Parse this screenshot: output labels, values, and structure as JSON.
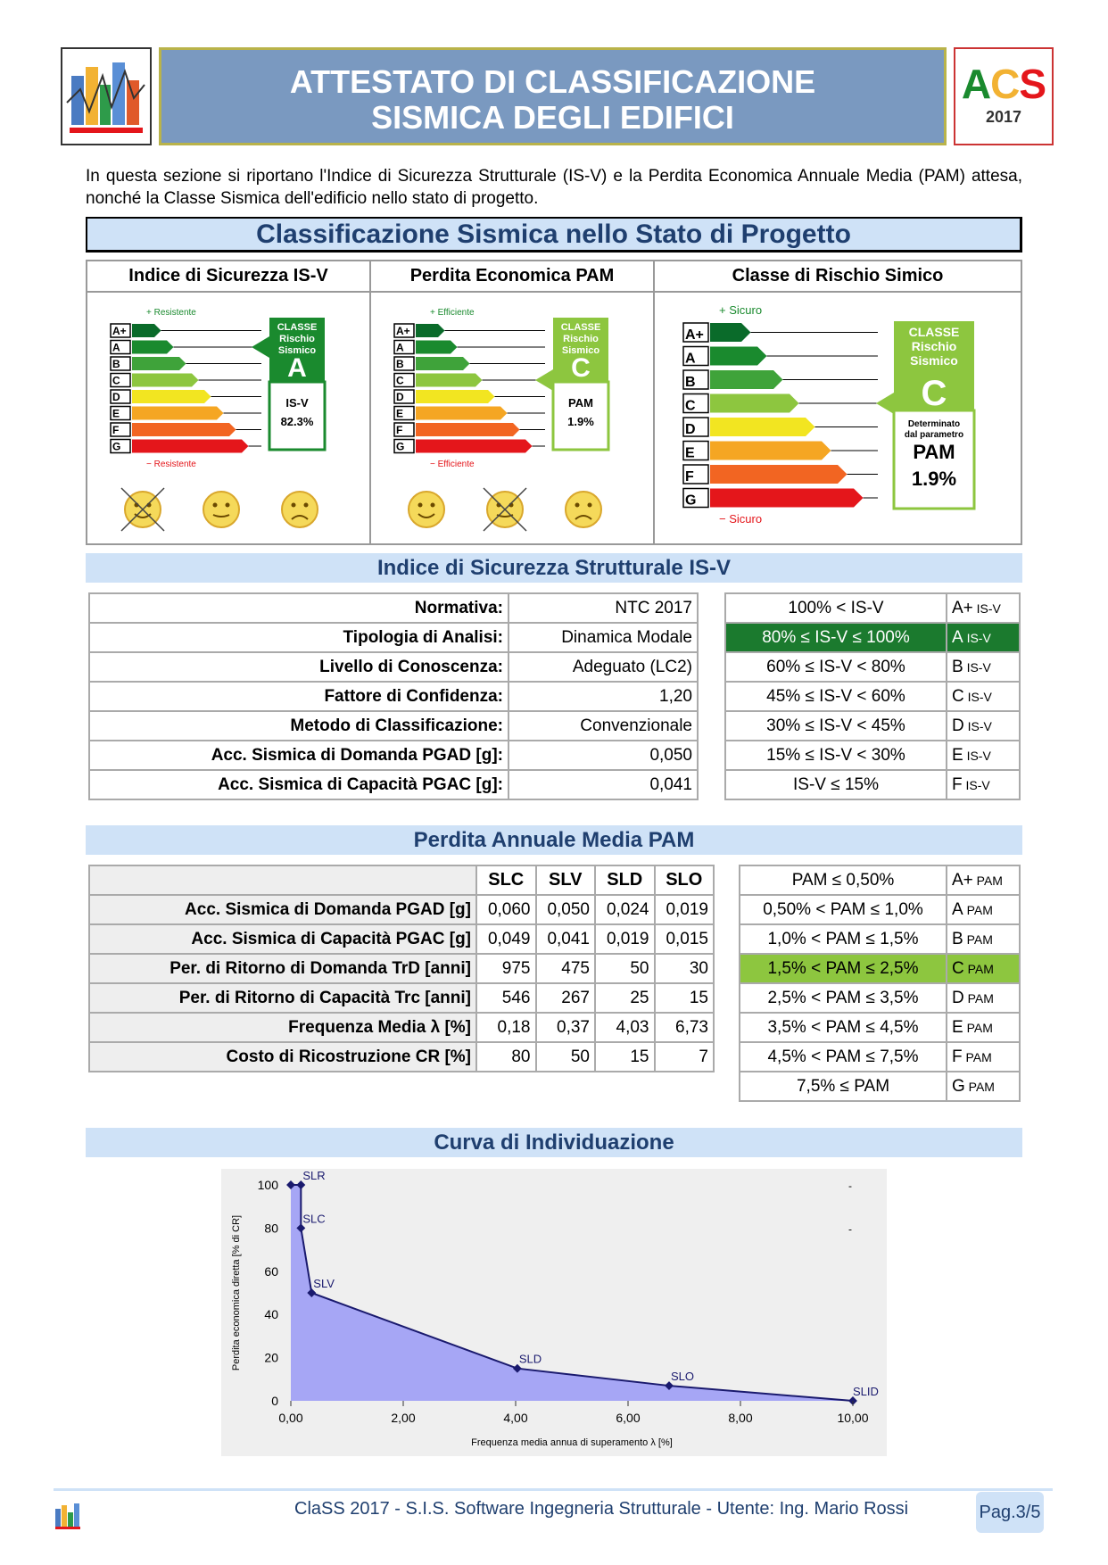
{
  "header": {
    "title1": "ATTESTATO DI CLASSIFICAZIONE",
    "title2": "SISMICA DEGLI EDIFICI",
    "logo_a": "A",
    "logo_c": "C",
    "logo_s": "S",
    "logo_year": "2017"
  },
  "intro": "In questa sezione si riportano l'Indice di Sicurezza Strutturale (IS-V) e la Perdita Economica Annuale Media (PAM) attesa, nonché la Classe Sismica dell'edificio nello stato di progetto.",
  "sec1": {
    "title": "Classificazione Sismica nello Stato di Progetto",
    "p1": {
      "head": "Indice di Sicurezza IS-V",
      "plus": "+ Resistente",
      "minus": "− Resistente",
      "classe": "CLASSE",
      "rischio": "Rischio",
      "sismico": "Sismico",
      "letter": "A",
      "param": "IS-V",
      "value": "82.3%"
    },
    "p2": {
      "head": "Perdita Economica PAM",
      "plus": "+ Efficiente",
      "minus": "− Efficiente",
      "classe": "CLASSE",
      "rischio": "Rischio",
      "sismico": "Sismico",
      "letter": "C",
      "param": "PAM",
      "value": "1.9%"
    },
    "p3": {
      "head": "Classe di Rischio Simico",
      "plus": "+ Sicuro",
      "minus": "− Sicuro",
      "classe": "CLASSE",
      "rischio": "Rischio",
      "sismico": "Sismico",
      "letter": "C",
      "det1": "Determinato",
      "det2": "dal parametro",
      "param": "PAM",
      "value": "1.9%"
    },
    "grades": [
      "A+",
      "A",
      "B",
      "C",
      "D",
      "E",
      "F",
      "G"
    ],
    "grade_colors": [
      "#0a6b2a",
      "#1a8a2e",
      "#3fa33a",
      "#8dc63f",
      "#f2e521",
      "#f5a623",
      "#f26522",
      "#e4161b"
    ]
  },
  "sec2": {
    "title": "Indice di Sicurezza Strutturale IS-V",
    "rows": [
      [
        "Normativa:",
        "NTC 2017"
      ],
      [
        "Tipologia di Analisi:",
        "Dinamica Modale"
      ],
      [
        "Livello di Conoscenza:",
        "Adeguato (LC2)"
      ],
      [
        "Fattore di Confidenza:",
        "1,20"
      ],
      [
        "Metodo di Classificazione:",
        "Convenzionale"
      ],
      [
        "Acc. Sismica di Domanda PGAD [g]:",
        "0,050"
      ],
      [
        "Acc. Sismica di Capacità PGAC [g]:",
        "0,041"
      ]
    ],
    "classes": [
      [
        "100% < IS-V",
        "A+ IS-V"
      ],
      [
        "80% ≤ IS-V ≤ 100%",
        "A IS-V"
      ],
      [
        "60% ≤ IS-V < 80%",
        "B IS-V"
      ],
      [
        "45% ≤ IS-V < 60%",
        "C IS-V"
      ],
      [
        "30% ≤ IS-V < 45%",
        "D IS-V"
      ],
      [
        "15% ≤ IS-V < 30%",
        "E IS-V"
      ],
      [
        "IS-V ≤ 15%",
        "F IS-V"
      ]
    ]
  },
  "sec3": {
    "title": "Perdita Annuale Media PAM",
    "cols": [
      "SLC",
      "SLV",
      "SLD",
      "SLO"
    ],
    "rows": [
      [
        "Acc. Sismica di Domanda PGAD [g]",
        "0,060",
        "0,050",
        "0,024",
        "0,019"
      ],
      [
        "Acc. Sismica di Capacità PGAC [g]",
        "0,049",
        "0,041",
        "0,019",
        "0,015"
      ],
      [
        "Per. di Ritorno di Domanda TrD [anni]",
        "975",
        "475",
        "50",
        "30"
      ],
      [
        "Per. di Ritorno di Capacità Trc [anni]",
        "546",
        "267",
        "25",
        "15"
      ],
      [
        "Frequenza Media λ [%]",
        "0,18",
        "0,37",
        "4,03",
        "6,73"
      ],
      [
        "Costo di Ricostruzione CR [%]",
        "80",
        "50",
        "15",
        "7"
      ]
    ],
    "classes": [
      [
        "PAM ≤ 0,50%",
        "A+ PAM"
      ],
      [
        "0,50% < PAM ≤ 1,0%",
        "A PAM"
      ],
      [
        "1,0% < PAM ≤ 1,5%",
        "B PAM"
      ],
      [
        "1,5% < PAM ≤ 2,5%",
        "C PAM"
      ],
      [
        "2,5% < PAM ≤ 3,5%",
        "D PAM"
      ],
      [
        "3,5% < PAM ≤ 4,5%",
        "E PAM"
      ],
      [
        "4,5% < PAM ≤ 7,5%",
        "F PAM"
      ],
      [
        "7,5% ≤ PAM",
        "G PAM"
      ]
    ]
  },
  "sec4": {
    "title": "Curva di Individuazione"
  },
  "chart_data": {
    "type": "area",
    "xlabel": "Frequenza media annua di superamento λ [%]",
    "ylabel": "Perdita economica diretta [% di CR]",
    "xlim": [
      0,
      10
    ],
    "ylim": [
      0,
      100
    ],
    "xticks": [
      "0,00",
      "2,00",
      "4,00",
      "6,00",
      "8,00",
      "10,00"
    ],
    "yticks": [
      "0",
      "20",
      "40",
      "60",
      "80",
      "100"
    ],
    "points": [
      {
        "label": "",
        "x": 0,
        "y": 100
      },
      {
        "label": "SLR",
        "x": 0.18,
        "y": 100
      },
      {
        "label": "SLC",
        "x": 0.18,
        "y": 80
      },
      {
        "label": "SLV",
        "x": 0.37,
        "y": 50
      },
      {
        "label": "SLD",
        "x": 4.03,
        "y": 15
      },
      {
        "label": "SLO",
        "x": 6.73,
        "y": 7
      },
      {
        "label": "SLID",
        "x": 10,
        "y": 0
      }
    ],
    "fill": "#a6a6f5",
    "line": "#1a1a6e",
    "dash": "-"
  },
  "footer": {
    "text": "ClaSS 2017 - S.I.S. Software Ingegneria Strutturale - Utente: Ing. Mario Rossi",
    "page": "Pag.3/5"
  }
}
